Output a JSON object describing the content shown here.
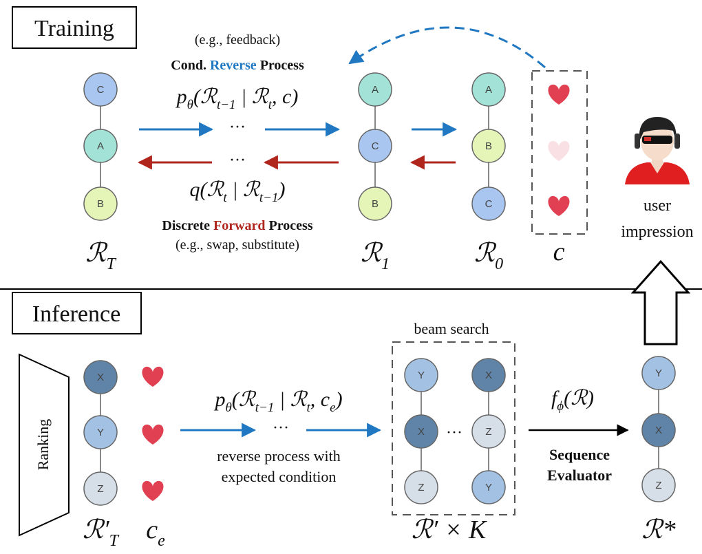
{
  "training": {
    "title": "Training",
    "condition_note": "(e.g., feedback)",
    "reverse_label": [
      "Cond.",
      "Reverse",
      "Process"
    ],
    "reverse_formula": [
      "p",
      "θ",
      "(ℛ",
      "t−1",
      " | ℛ",
      "t",
      ", c)"
    ],
    "ellipsis": "···",
    "forward_formula": [
      "q(ℛ",
      "t",
      " | ℛ",
      "t−1",
      ")"
    ],
    "forward_label": [
      "Discrete",
      "Forward",
      "Process"
    ],
    "forward_note": "(e.g., swap, substitute)",
    "sequences": [
      {
        "label": [
          "ℛ",
          "T"
        ],
        "nodes": [
          "C",
          "A",
          "B"
        ]
      },
      {
        "label": [
          "ℛ",
          "1"
        ],
        "nodes": [
          "A",
          "C",
          "B"
        ]
      },
      {
        "label": [
          "ℛ",
          "0"
        ],
        "nodes": [
          "A",
          "B",
          "C"
        ]
      }
    ],
    "condition_label": [
      "c"
    ],
    "user_label": [
      "user",
      "impression"
    ]
  },
  "inference": {
    "title": "Inference",
    "ranking": "Ranking",
    "reverse_formula": [
      "p",
      "θ",
      "(ℛ",
      "t−1",
      " | ℛ",
      "t",
      ", c",
      "e",
      ")"
    ],
    "ellipsis": "···",
    "reverse_note": [
      "reverse process with",
      "expected condition"
    ],
    "beam_search": "beam search",
    "evaluator_formula": [
      "f",
      "ϕ",
      "(ℛ)"
    ],
    "evaluator_label": [
      "Sequence",
      "Evaluator"
    ],
    "input_sequence": {
      "label": [
        "ℛ′",
        "T"
      ],
      "nodes": [
        "X",
        "Y",
        "Z"
      ]
    },
    "condition_label": [
      "c",
      "e"
    ],
    "beam_sequences": [
      [
        "Y",
        "X",
        "Z"
      ],
      [
        "X",
        "Z",
        "Y"
      ]
    ],
    "beam_label": [
      "ℛ′ × K"
    ],
    "output_sequence": {
      "label": [
        "ℛ*"
      ],
      "nodes": [
        "Y",
        "X",
        "Z"
      ]
    }
  }
}
